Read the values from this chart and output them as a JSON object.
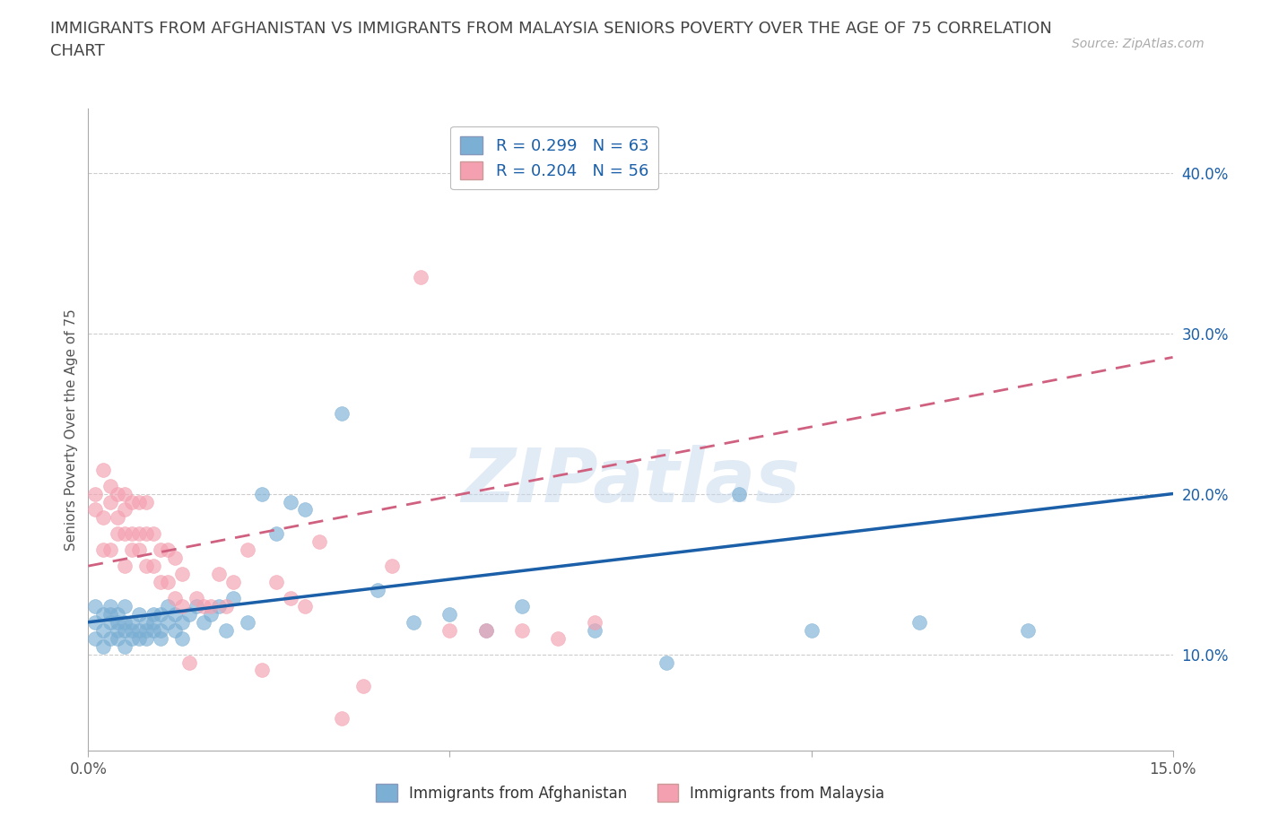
{
  "title": "IMMIGRANTS FROM AFGHANISTAN VS IMMIGRANTS FROM MALAYSIA SENIORS POVERTY OVER THE AGE OF 75 CORRELATION\nCHART",
  "source": "Source: ZipAtlas.com",
  "ylabel": "Seniors Poverty Over the Age of 75",
  "xlim": [
    0.0,
    0.15
  ],
  "ylim": [
    0.04,
    0.44
  ],
  "R_afghanistan": 0.299,
  "N_afghanistan": 63,
  "R_malaysia": 0.204,
  "N_malaysia": 56,
  "color_afghanistan": "#7bafd4",
  "color_malaysia": "#f4a0b0",
  "color_afghanistan_line": "#1a5fa8",
  "color_malaysia_line": "#d06080",
  "color_legend_text": "#1a5fa8",
  "watermark": "ZIPatlas",
  "afghanistan_x": [
    0.001,
    0.001,
    0.001,
    0.002,
    0.002,
    0.002,
    0.003,
    0.003,
    0.003,
    0.003,
    0.004,
    0.004,
    0.004,
    0.004,
    0.005,
    0.005,
    0.005,
    0.005,
    0.006,
    0.006,
    0.006,
    0.007,
    0.007,
    0.007,
    0.008,
    0.008,
    0.008,
    0.009,
    0.009,
    0.009,
    0.01,
    0.01,
    0.01,
    0.011,
    0.011,
    0.012,
    0.012,
    0.013,
    0.013,
    0.014,
    0.015,
    0.016,
    0.017,
    0.018,
    0.019,
    0.02,
    0.022,
    0.024,
    0.026,
    0.028,
    0.03,
    0.035,
    0.04,
    0.045,
    0.05,
    0.055,
    0.06,
    0.07,
    0.08,
    0.09,
    0.1,
    0.115,
    0.13
  ],
  "afghanistan_y": [
    0.13,
    0.12,
    0.11,
    0.125,
    0.115,
    0.105,
    0.13,
    0.12,
    0.11,
    0.125,
    0.12,
    0.115,
    0.11,
    0.125,
    0.12,
    0.115,
    0.105,
    0.13,
    0.12,
    0.115,
    0.11,
    0.125,
    0.115,
    0.11,
    0.12,
    0.115,
    0.11,
    0.125,
    0.115,
    0.12,
    0.125,
    0.115,
    0.11,
    0.12,
    0.13,
    0.125,
    0.115,
    0.12,
    0.11,
    0.125,
    0.13,
    0.12,
    0.125,
    0.13,
    0.115,
    0.135,
    0.12,
    0.2,
    0.175,
    0.195,
    0.19,
    0.25,
    0.14,
    0.12,
    0.125,
    0.115,
    0.13,
    0.115,
    0.095,
    0.2,
    0.115,
    0.12,
    0.115
  ],
  "malaysia_x": [
    0.001,
    0.001,
    0.002,
    0.002,
    0.002,
    0.003,
    0.003,
    0.003,
    0.004,
    0.004,
    0.004,
    0.005,
    0.005,
    0.005,
    0.005,
    0.006,
    0.006,
    0.006,
    0.007,
    0.007,
    0.007,
    0.008,
    0.008,
    0.008,
    0.009,
    0.009,
    0.01,
    0.01,
    0.011,
    0.011,
    0.012,
    0.012,
    0.013,
    0.013,
    0.014,
    0.015,
    0.016,
    0.017,
    0.018,
    0.019,
    0.02,
    0.022,
    0.024,
    0.026,
    0.028,
    0.03,
    0.032,
    0.035,
    0.038,
    0.042,
    0.046,
    0.05,
    0.055,
    0.06,
    0.065,
    0.07
  ],
  "malaysia_y": [
    0.2,
    0.19,
    0.215,
    0.185,
    0.165,
    0.205,
    0.195,
    0.165,
    0.2,
    0.185,
    0.175,
    0.2,
    0.19,
    0.175,
    0.155,
    0.195,
    0.175,
    0.165,
    0.195,
    0.175,
    0.165,
    0.195,
    0.175,
    0.155,
    0.175,
    0.155,
    0.165,
    0.145,
    0.165,
    0.145,
    0.16,
    0.135,
    0.15,
    0.13,
    0.095,
    0.135,
    0.13,
    0.13,
    0.15,
    0.13,
    0.145,
    0.165,
    0.09,
    0.145,
    0.135,
    0.13,
    0.17,
    0.06,
    0.08,
    0.155,
    0.335,
    0.115,
    0.115,
    0.115,
    0.11,
    0.12
  ],
  "background_color": "#ffffff",
  "grid_color": "#cccccc",
  "title_color": "#444444",
  "title_fontsize": 13,
  "axis_label_color": "#1a5fa8"
}
